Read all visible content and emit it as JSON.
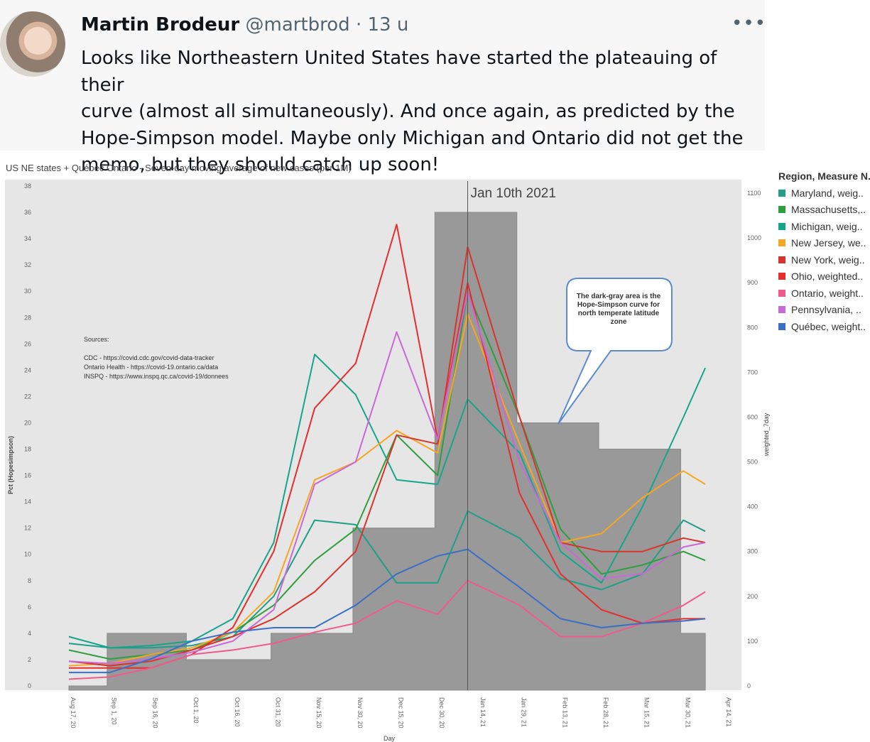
{
  "tweet": {
    "avatar": "baby-photo",
    "name": "Martin Brodeur",
    "handle": "@martbrod",
    "separator": "·",
    "time": "13 u",
    "more_icon": "more-horizontal-icon",
    "more_label": "•••",
    "lines": [
      "Looks like Northeastern United States have started the plateauing of their",
      "curve (almost all simultaneously). And once again, as predicted by the",
      "Hope-Simpson model. Maybe only Michigan and Ontario did not get the",
      "memo, but they should catch up soon!"
    ]
  },
  "sources": {
    "heading": "Sources:",
    "items": [
      "CDC - https://covid.cdc.gov/covid-data-tracker",
      "Ontario Health - https://covid-19.ontario.ca/data",
      "INSPQ - https://www.inspq.qc.ca/covid-19/donnees"
    ]
  },
  "callout": "The dark-gray area is the Hope-Simpson curve for north temperate latitude zone",
  "marker_label": "Jan 10th 2021",
  "colors": {
    "background": "#e6e6e6",
    "hope_simpson": "#999999",
    "Maryland": "#1f9e89",
    "Massachusetts": "#2e9e3f",
    "Michigan": "#17a589",
    "New Jersey": "#f5a623",
    "New York": "#d9342b",
    "Ohio": "#e62e2e",
    "Ontario": "#ef5b8a",
    "Pennsylvania": "#c969d6",
    "Québec": "#3b6fc4"
  },
  "chart_data": {
    "type": "line",
    "title": "US NE states + Québec Ontario - Seven-day moving average of new cases (per 1M)",
    "xlabel": "Day",
    "ylabel_left": "Pct (Hopesimpson)",
    "ylabel_right": "weighted_7day",
    "y_left_range": [
      0,
      38
    ],
    "y_right_range": [
      0,
      1100
    ],
    "y_left_ticks": [
      "0",
      "2",
      "4",
      "6",
      "8",
      "10",
      "12",
      "14",
      "16",
      "18",
      "20",
      "22",
      "24",
      "26",
      "28",
      "30",
      "32",
      "34",
      "36",
      "38"
    ],
    "y_right_ticks": [
      "0",
      "100",
      "200",
      "300",
      "400",
      "500",
      "600",
      "700",
      "800",
      "900",
      "1000",
      "1100"
    ],
    "x_tick_labels": [
      "Aug 17, 20",
      "Sep 1, 20",
      "Sep 16, 20",
      "Oct 1, 20",
      "Oct 16, 20",
      "Oct 31, 20",
      "Nov 15, 20",
      "Nov 30, 20",
      "Dec 15, 20",
      "Dec 30, 20",
      "Jan 14, 21",
      "Jan 29, 21",
      "Feb 13, 21",
      "Feb 28, 21",
      "Mar 15, 21",
      "Mar 30, 21",
      "Apr 14, 21"
    ],
    "legend_title": "Region, Measure N..",
    "legend": [
      "Maryland, weig..",
      "Massachusetts,..",
      "Michigan, weig..",
      "New Jersey, we..",
      "New York, weig..",
      "Ohio, weighted..",
      "Ontario, weight..",
      "Pennsylvania, ..",
      "Québec, weight.."
    ],
    "hope_simpson_steps": [
      {
        "from": "Aug 17, 20",
        "to": "Aug 31, 20",
        "pct": 0
      },
      {
        "from": "Aug 31, 20",
        "to": "Sep 29, 20",
        "pct": 4
      },
      {
        "from": "Sep 29, 20",
        "to": "Oct 30, 20",
        "pct": 2
      },
      {
        "from": "Oct 30, 20",
        "to": "Nov 29, 20",
        "pct": 4
      },
      {
        "from": "Nov 29, 20",
        "to": "Dec 29, 20",
        "pct": 12
      },
      {
        "from": "Dec 29, 20",
        "to": "Jan 28, 21",
        "pct": 36
      },
      {
        "from": "Jan 28, 21",
        "to": "Feb 27, 21",
        "pct": 20
      },
      {
        "from": "Feb 27, 21",
        "to": "Mar 29, 21",
        "pct": 18
      },
      {
        "from": "Mar 29, 21",
        "to": "Apr 7, 21",
        "pct": 4
      }
    ],
    "series_x": [
      "Aug 17, 20",
      "Sep 1, 20",
      "Sep 16, 20",
      "Oct 1, 20",
      "Oct 16, 20",
      "Oct 31, 20",
      "Nov 15, 20",
      "Nov 30, 20",
      "Dec 15, 20",
      "Dec 30, 20",
      "Jan 10, 21",
      "Jan 29, 21",
      "Feb 13, 21",
      "Feb 28, 21",
      "Mar 15, 21",
      "Mar 30, 21",
      "Apr 7, 21"
    ],
    "series": [
      {
        "name": "Maryland",
        "values": [
          95,
          85,
          85,
          90,
          110,
          200,
          370,
          360,
          230,
          230,
          390,
          330,
          240,
          215,
          250,
          370,
          345
        ]
      },
      {
        "name": "Massachusetts",
        "values": [
          80,
          60,
          70,
          80,
          120,
          180,
          280,
          350,
          560,
          470,
          880,
          600,
          350,
          250,
          270,
          300,
          280
        ]
      },
      {
        "name": "Michigan",
        "values": [
          110,
          85,
          90,
          100,
          150,
          320,
          740,
          650,
          460,
          450,
          640,
          520,
          300,
          230,
          400,
          600,
          710
        ]
      },
      {
        "name": "New Jersey",
        "values": [
          45,
          50,
          70,
          85,
          120,
          210,
          460,
          500,
          570,
          520,
          830,
          540,
          320,
          340,
          420,
          480,
          450
        ]
      },
      {
        "name": "New York",
        "values": [
          55,
          45,
          55,
          80,
          110,
          150,
          210,
          300,
          560,
          540,
          980,
          600,
          320,
          300,
          300,
          330,
          320
        ]
      },
      {
        "name": "Ohio",
        "values": [
          40,
          40,
          40,
          70,
          130,
          300,
          620,
          720,
          1030,
          550,
          900,
          430,
          250,
          170,
          140,
          150,
          150
        ]
      },
      {
        "name": "Ontario",
        "values": [
          15,
          20,
          40,
          70,
          80,
          95,
          120,
          140,
          190,
          160,
          235,
          180,
          110,
          110,
          140,
          180,
          210
        ]
      },
      {
        "name": "Pennsylvania",
        "values": [
          55,
          50,
          60,
          75,
          100,
          170,
          450,
          500,
          790,
          550,
          880,
          500,
          320,
          240,
          250,
          310,
          320
        ]
      },
      {
        "name": "Québec",
        "values": [
          30,
          30,
          60,
          100,
          120,
          130,
          130,
          180,
          250,
          290,
          305,
          220,
          150,
          130,
          140,
          145,
          150
        ]
      }
    ]
  }
}
